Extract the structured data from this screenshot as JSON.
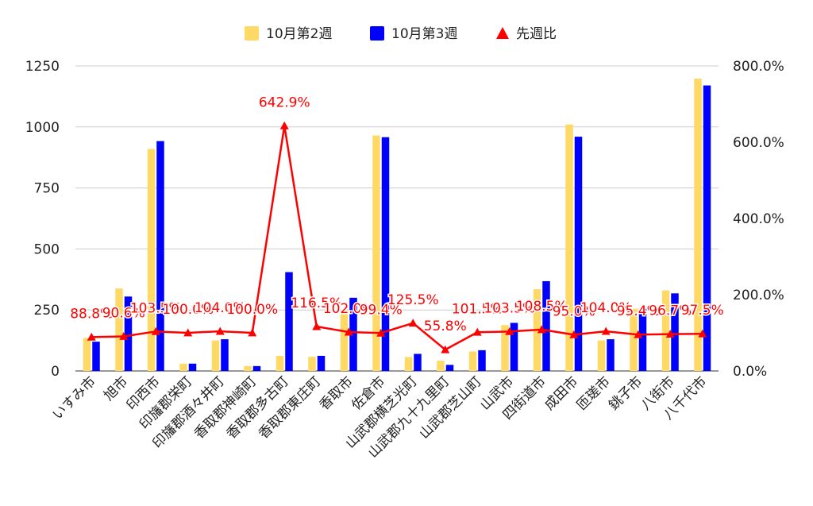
{
  "chart_data": {
    "type": "bar",
    "categories": [
      "いすみ市",
      "旭市",
      "印西市",
      "印旛郡栄町",
      "印旛郡酒々井町",
      "香取郡神崎町",
      "香取郡多古町",
      "香取郡東庄町",
      "香取市",
      "佐倉市",
      "山武郡横芝光町",
      "山武郡九十九里町",
      "山武郡芝山町",
      "山武市",
      "四街道市",
      "成田市",
      "匝瑳市",
      "銚子市",
      "八街市",
      "八千代市"
    ],
    "series": [
      {
        "name": "10月第2週",
        "type": "bar",
        "axis": "left",
        "color": "#ffd966",
        "values": [
          135,
          338,
          910,
          30,
          125,
          20,
          62,
          58,
          250,
          965,
          57,
          42,
          80,
          188,
          335,
          1010,
          125,
          255,
          330,
          1198
        ]
      },
      {
        "name": "10月第3週",
        "type": "bar",
        "axis": "left",
        "color": "#0000ff",
        "values": [
          120,
          305,
          942,
          30,
          130,
          20,
          405,
          62,
          300,
          958,
          70,
          25,
          85,
          197,
          368,
          960,
          130,
          255,
          318,
          1170
        ]
      },
      {
        "name": "先週比",
        "type": "line",
        "axis": "right",
        "color": "#ff0000",
        "values": [
          88.8,
          90.6,
          103.5,
          100.0,
          104.0,
          100.0,
          642.9,
          116.5,
          102.0,
          99.4,
          125.5,
          55.8,
          101.5,
          103.5,
          108.5,
          95.0,
          104.0,
          95.4,
          96.7,
          97.5
        ]
      }
    ],
    "point_labels": [
      "88.8%",
      "90.6%",
      "103.5%",
      "100.0%",
      "104.0%",
      "100.0%",
      "642.9%",
      "116.5%",
      "102.0%",
      "99.4%",
      "125.5%",
      "55.8%",
      "101.5%",
      "103.5%",
      "108.5%",
      "95.0%",
      "104.0%",
      "95.4%",
      "96.7%",
      "97.5%"
    ],
    "left_axis": {
      "ylim": [
        0,
        1250
      ],
      "ticks": [
        "0",
        "250",
        "500",
        "750",
        "1000",
        "1250"
      ]
    },
    "right_axis": {
      "ylim": [
        0,
        800
      ],
      "ticks": [
        "0.0%",
        "200.0%",
        "400.0%",
        "600.0%",
        "800.0%"
      ]
    },
    "legend_position": "top-center",
    "grid": true,
    "title": "",
    "xlabel": "",
    "ylabel": ""
  }
}
